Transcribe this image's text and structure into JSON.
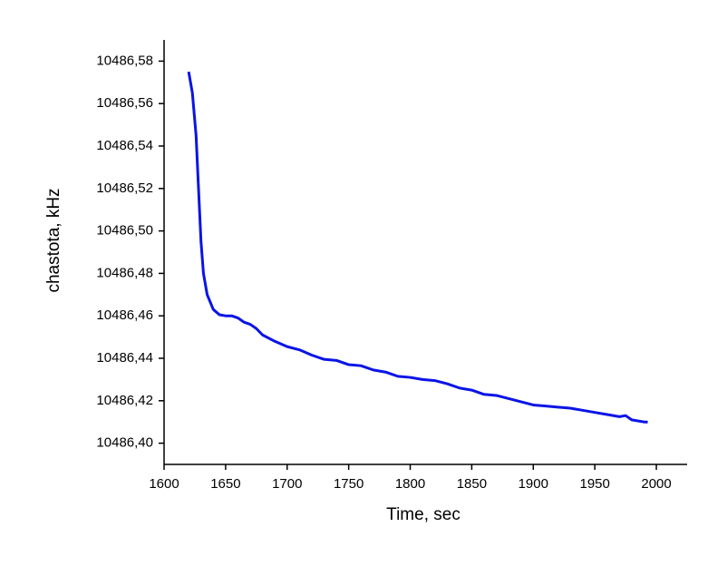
{
  "chart_data": {
    "type": "line",
    "x_label": "Time, sec",
    "y_label": "chastota, kHz",
    "xlim": [
      1600,
      2025
    ],
    "ylim": [
      10486.39,
      10486.59
    ],
    "xticks": [
      1600,
      1650,
      1700,
      1750,
      1800,
      1850,
      1900,
      1950,
      2000
    ],
    "yticks": [
      {
        "value": 10486.4,
        "label": "10486,40"
      },
      {
        "value": 10486.42,
        "label": "10486,42"
      },
      {
        "value": 10486.44,
        "label": "10486,44"
      },
      {
        "value": 10486.46,
        "label": "10486,46"
      },
      {
        "value": 10486.48,
        "label": "10486,48"
      },
      {
        "value": 10486.5,
        "label": "10486,50"
      },
      {
        "value": 10486.52,
        "label": "10486,52"
      },
      {
        "value": 10486.54,
        "label": "10486,54"
      },
      {
        "value": 10486.56,
        "label": "10486,56"
      },
      {
        "value": 10486.58,
        "label": "10486,58"
      }
    ],
    "grid": false,
    "series": [
      {
        "color": "#0a14e6",
        "x": [
          1620,
          1623,
          1626,
          1628,
          1630,
          1632,
          1635,
          1640,
          1645,
          1650,
          1655,
          1660,
          1665,
          1670,
          1675,
          1680,
          1690,
          1700,
          1710,
          1720,
          1730,
          1740,
          1750,
          1760,
          1770,
          1780,
          1790,
          1800,
          1810,
          1820,
          1830,
          1840,
          1850,
          1860,
          1870,
          1880,
          1890,
          1900,
          1910,
          1920,
          1930,
          1940,
          1950,
          1960,
          1970,
          1975,
          1980,
          1990,
          1993
        ],
        "values": [
          10486.575,
          10486.565,
          10486.545,
          10486.52,
          10486.495,
          10486.48,
          10486.47,
          10486.463,
          10486.4605,
          10486.46,
          10486.46,
          10486.459,
          10486.457,
          10486.456,
          10486.454,
          10486.451,
          10486.448,
          10486.4455,
          10486.444,
          10486.4415,
          10486.4395,
          10486.439,
          10486.437,
          10486.4365,
          10486.4345,
          10486.4335,
          10486.4315,
          10486.431,
          10486.43,
          10486.4295,
          10486.428,
          10486.426,
          10486.425,
          10486.423,
          10486.4225,
          10486.421,
          10486.4195,
          10486.418,
          10486.4175,
          10486.417,
          10486.4165,
          10486.4155,
          10486.4145,
          10486.4135,
          10486.4125,
          10486.413,
          10486.411,
          10486.41,
          10486.41
        ]
      }
    ]
  }
}
